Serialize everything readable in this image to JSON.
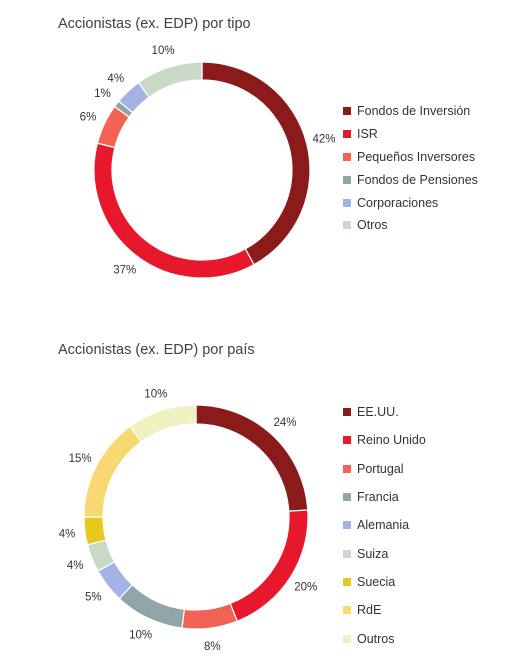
{
  "chart_data": [
    {
      "type": "pie",
      "title": "Accionistas (ex. EDP) por tipo",
      "categories": [
        "Fondos de Inversión",
        "ISR",
        "Pequeños Inversores",
        "Fondos de Pensiones",
        "Corporaciones",
        "Otros"
      ],
      "values": [
        42,
        37,
        6,
        1,
        4,
        10
      ],
      "labels": [
        "42%",
        "37%",
        "6%",
        "1%",
        "4%",
        "10%"
      ],
      "colors": [
        "#8B1A1A",
        "#E8182C",
        "#F26356",
        "#8FA5A8",
        "#A3B3E6",
        "#C8D9C6"
      ],
      "donut": true,
      "legend_position": "right"
    },
    {
      "type": "pie",
      "title": "Accionistas (ex. EDP) por país",
      "categories": [
        "EE.UU.",
        "Reino Unido",
        "Portugal",
        "Francia",
        "Alemania",
        "Suiza",
        "Suecia",
        "RdE",
        "Outros"
      ],
      "values": [
        24,
        20,
        8,
        10,
        5,
        4,
        4,
        15,
        10
      ],
      "labels": [
        "24%",
        "20%",
        "8%",
        "10%",
        "5%",
        "4%",
        "4%",
        "15%",
        "10%"
      ],
      "colors": [
        "#8B1A1A",
        "#E8182C",
        "#F26356",
        "#8FA5A8",
        "#A3B3E6",
        "#C8D9C6",
        "#E8C81A",
        "#F8D870",
        "#EEF2C0"
      ],
      "donut": true,
      "legend_position": "right"
    }
  ]
}
